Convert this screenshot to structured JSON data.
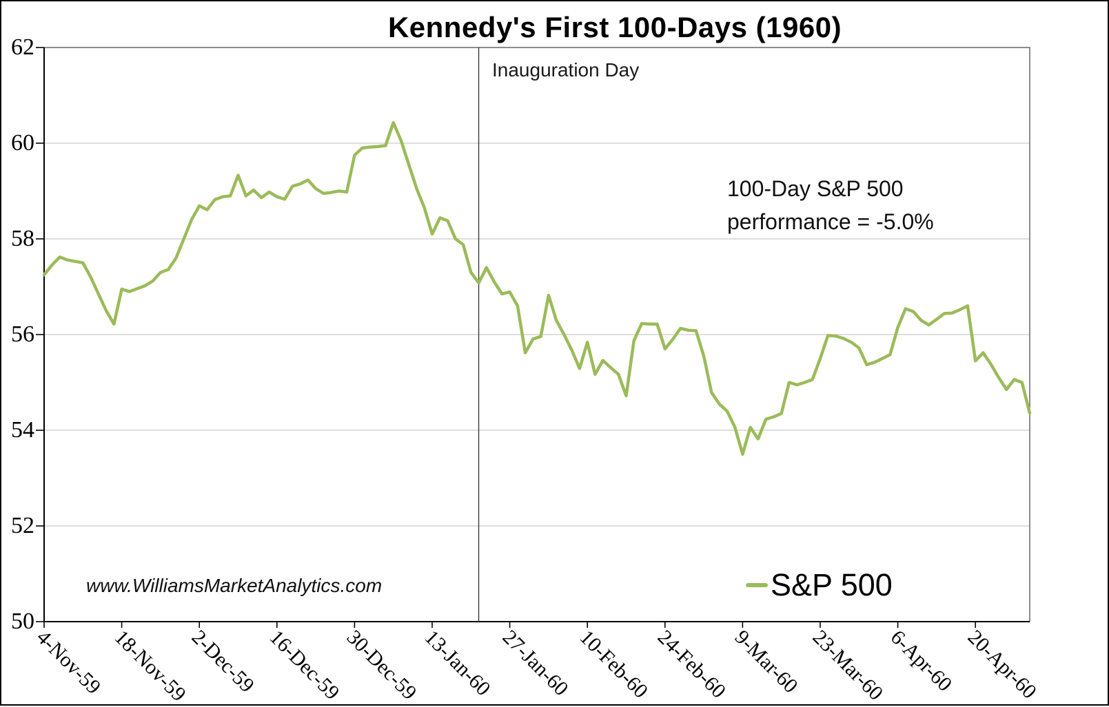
{
  "chart_data": {
    "type": "line",
    "title": "Kennedy's First 100-Days (1960)",
    "xlabel": "",
    "ylabel": "",
    "ylim": [
      50,
      62
    ],
    "y_ticks": [
      50,
      52,
      54,
      56,
      58,
      60,
      62
    ],
    "x_tick_labels": [
      "4-Nov-59",
      "18-Nov-59",
      "2-Dec-59",
      "16-Dec-59",
      "30-Dec-59",
      "13-Jan-60",
      "27-Jan-60",
      "10-Feb-60",
      "24-Feb-60",
      "9-Mar-60",
      "23-Mar-60",
      "6-Apr-60",
      "20-Apr-60"
    ],
    "x_tick_indices": [
      0,
      10,
      20,
      30,
      40,
      50,
      60,
      70,
      80,
      90,
      100,
      110,
      120
    ],
    "grid": "horizontal",
    "legend_position": "bottom-right",
    "series": [
      {
        "name": "S&P 500",
        "color": "#9BBB59",
        "values": [
          57.25,
          57.45,
          57.62,
          57.56,
          57.53,
          57.5,
          57.2,
          56.85,
          56.5,
          56.22,
          56.95,
          56.9,
          56.96,
          57.02,
          57.12,
          57.3,
          57.36,
          57.6,
          58.0,
          58.4,
          58.69,
          58.61,
          58.82,
          58.88,
          58.9,
          59.33,
          58.9,
          59.02,
          58.86,
          58.98,
          58.88,
          58.83,
          59.1,
          59.15,
          59.23,
          59.05,
          58.95,
          58.97,
          59.0,
          58.98,
          59.75,
          59.9,
          59.92,
          59.93,
          59.95,
          60.43,
          60.05,
          59.55,
          59.05,
          58.65,
          58.1,
          58.44,
          58.38,
          58.0,
          57.88,
          57.3,
          57.08,
          57.4,
          57.1,
          56.85,
          56.89,
          56.6,
          55.62,
          55.91,
          55.96,
          56.82,
          56.3,
          56.0,
          55.67,
          55.29,
          55.84,
          55.17,
          55.46,
          55.31,
          55.17,
          54.72,
          55.87,
          56.23,
          56.22,
          56.22,
          55.7,
          55.9,
          56.13,
          56.09,
          56.08,
          55.55,
          54.79,
          54.55,
          54.4,
          54.07,
          53.5,
          54.06,
          53.82,
          54.23,
          54.28,
          54.35,
          55.0,
          54.95,
          55.0,
          55.06,
          55.5,
          55.98,
          55.97,
          55.92,
          55.84,
          55.72,
          55.37,
          55.42,
          55.5,
          55.58,
          56.15,
          56.54,
          56.48,
          56.3,
          56.2,
          56.32,
          56.44,
          56.45,
          56.52,
          56.6,
          55.45,
          55.62,
          55.38,
          55.1,
          54.85,
          55.06,
          55.0,
          54.36
        ]
      }
    ],
    "annotations": {
      "inauguration": {
        "label": "Inauguration Day",
        "index": 56
      },
      "performance": {
        "line1": "100-Day S&P 500",
        "line2": "performance = -5.0%"
      }
    },
    "watermark": "www.WilliamsMarketAnalytics.com",
    "legend": {
      "label": "S&P 500"
    }
  }
}
